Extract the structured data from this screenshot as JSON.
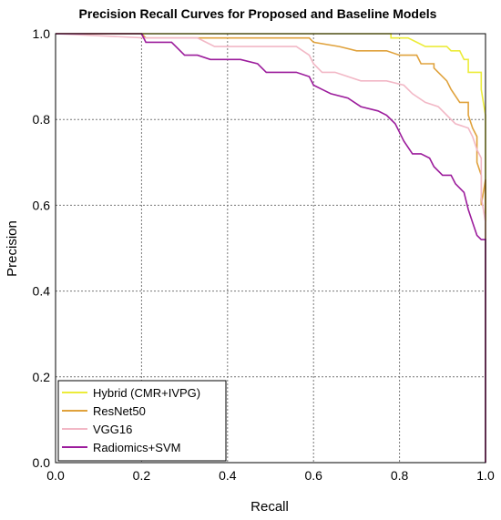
{
  "chart_data": {
    "type": "line",
    "title": "Precision Recall Curves for Proposed and Baseline Models",
    "xlabel": "Recall",
    "ylabel": "Precision",
    "xlim": [
      0.0,
      1.0
    ],
    "ylim": [
      0.0,
      1.0
    ],
    "grid": true,
    "legend_position": "bottom-left",
    "x_ticks": [
      "0.0",
      "0.2",
      "0.4",
      "0.6",
      "0.8",
      "1.0"
    ],
    "y_ticks": [
      "0.0",
      "0.2",
      "0.4",
      "0.6",
      "0.8",
      "1.0"
    ],
    "series": [
      {
        "name": "Hybrid (CMR+IVPG)",
        "color": "#ecec3a",
        "points": [
          [
            0.0,
            1.0
          ],
          [
            0.78,
            1.0
          ],
          [
            0.78,
            0.99
          ],
          [
            0.82,
            0.99
          ],
          [
            0.84,
            0.98
          ],
          [
            0.86,
            0.97
          ],
          [
            0.91,
            0.97
          ],
          [
            0.92,
            0.96
          ],
          [
            0.94,
            0.96
          ],
          [
            0.95,
            0.94
          ],
          [
            0.96,
            0.94
          ],
          [
            0.96,
            0.91
          ],
          [
            0.99,
            0.91
          ],
          [
            0.99,
            0.87
          ],
          [
            1.0,
            0.81
          ],
          [
            1.0,
            0.0
          ]
        ]
      },
      {
        "name": "ResNet50",
        "color": "#e0a23c",
        "points": [
          [
            0.0,
            1.0
          ],
          [
            0.2,
            1.0
          ],
          [
            0.21,
            0.99
          ],
          [
            0.59,
            0.99
          ],
          [
            0.6,
            0.98
          ],
          [
            0.66,
            0.97
          ],
          [
            0.7,
            0.96
          ],
          [
            0.77,
            0.96
          ],
          [
            0.8,
            0.95
          ],
          [
            0.84,
            0.95
          ],
          [
            0.85,
            0.93
          ],
          [
            0.88,
            0.93
          ],
          [
            0.88,
            0.92
          ],
          [
            0.89,
            0.91
          ],
          [
            0.91,
            0.89
          ],
          [
            0.92,
            0.87
          ],
          [
            0.94,
            0.84
          ],
          [
            0.96,
            0.84
          ],
          [
            0.96,
            0.81
          ],
          [
            0.97,
            0.78
          ],
          [
            0.98,
            0.76
          ],
          [
            0.98,
            0.7
          ],
          [
            0.99,
            0.67
          ],
          [
            0.99,
            0.6
          ],
          [
            1.0,
            0.66
          ],
          [
            1.0,
            0.0
          ]
        ]
      },
      {
        "name": "VGG16",
        "color": "#f2b8c6",
        "points": [
          [
            0.0,
            1.0
          ],
          [
            0.21,
            0.99
          ],
          [
            0.33,
            0.99
          ],
          [
            0.35,
            0.98
          ],
          [
            0.37,
            0.97
          ],
          [
            0.56,
            0.97
          ],
          [
            0.59,
            0.95
          ],
          [
            0.6,
            0.93
          ],
          [
            0.62,
            0.91
          ],
          [
            0.65,
            0.91
          ],
          [
            0.68,
            0.9
          ],
          [
            0.71,
            0.89
          ],
          [
            0.77,
            0.89
          ],
          [
            0.81,
            0.88
          ],
          [
            0.83,
            0.86
          ],
          [
            0.86,
            0.84
          ],
          [
            0.89,
            0.83
          ],
          [
            0.91,
            0.81
          ],
          [
            0.93,
            0.79
          ],
          [
            0.96,
            0.78
          ],
          [
            0.97,
            0.76
          ],
          [
            0.98,
            0.73
          ],
          [
            0.99,
            0.71
          ],
          [
            0.99,
            0.62
          ],
          [
            1.0,
            0.56
          ],
          [
            1.0,
            0.0
          ]
        ]
      },
      {
        "name": "Radiomics+SVM",
        "color": "#9c1c9c",
        "points": [
          [
            0.0,
            1.0
          ],
          [
            0.2,
            1.0
          ],
          [
            0.21,
            0.98
          ],
          [
            0.27,
            0.98
          ],
          [
            0.3,
            0.95
          ],
          [
            0.33,
            0.95
          ],
          [
            0.36,
            0.94
          ],
          [
            0.43,
            0.94
          ],
          [
            0.47,
            0.93
          ],
          [
            0.49,
            0.91
          ],
          [
            0.56,
            0.91
          ],
          [
            0.59,
            0.9
          ],
          [
            0.6,
            0.88
          ],
          [
            0.62,
            0.87
          ],
          [
            0.64,
            0.86
          ],
          [
            0.68,
            0.85
          ],
          [
            0.71,
            0.83
          ],
          [
            0.75,
            0.82
          ],
          [
            0.77,
            0.81
          ],
          [
            0.79,
            0.79
          ],
          [
            0.8,
            0.77
          ],
          [
            0.81,
            0.75
          ],
          [
            0.83,
            0.72
          ],
          [
            0.85,
            0.72
          ],
          [
            0.87,
            0.71
          ],
          [
            0.88,
            0.69
          ],
          [
            0.9,
            0.67
          ],
          [
            0.92,
            0.67
          ],
          [
            0.93,
            0.65
          ],
          [
            0.95,
            0.63
          ],
          [
            0.96,
            0.59
          ],
          [
            0.97,
            0.56
          ],
          [
            0.98,
            0.53
          ],
          [
            0.99,
            0.52
          ],
          [
            1.0,
            0.52
          ],
          [
            1.0,
            0.0
          ]
        ]
      }
    ]
  }
}
